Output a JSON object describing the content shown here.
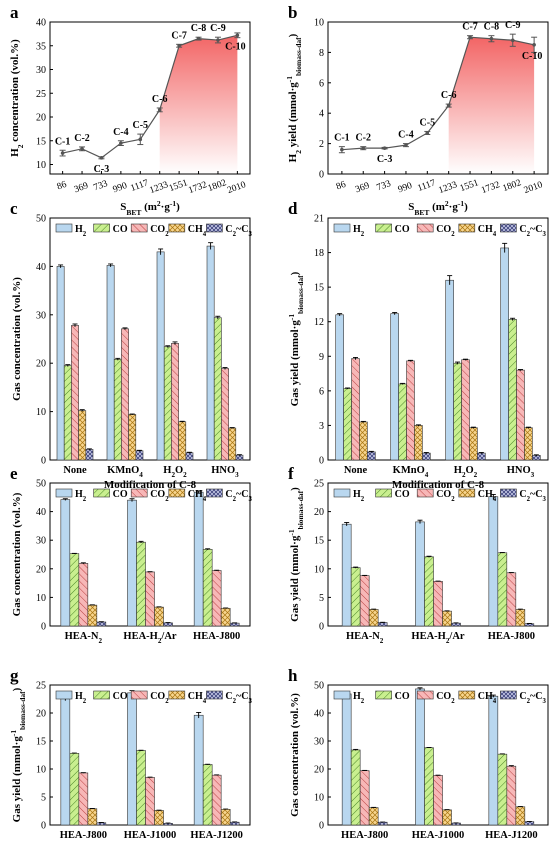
{
  "colors": {
    "H2": "#b9d7ef",
    "CO": "#c9ef8f",
    "CO2": "#f7b7b7",
    "CH4": "#f7d58e",
    "C2C3": "#c7cbe8",
    "line": "#555555",
    "area_top": "#f04a4a",
    "area_bottom": "#ffffff"
  },
  "chart_data": [
    {
      "panel": "a",
      "type": "line",
      "x_categories": [
        "86",
        "369",
        "733",
        "990",
        "1117",
        "1233",
        "1551",
        "1732",
        "1802",
        "2010"
      ],
      "point_labels": [
        "C-1",
        "C-2",
        "C-3",
        "C-4",
        "C-5",
        "C-6",
        "C-7",
        "C-8",
        "C-9",
        "C-10"
      ],
      "values": [
        12.4,
        13.3,
        11.4,
        14.5,
        15.3,
        21.5,
        35.0,
        36.5,
        36.2,
        37.2
      ],
      "errors": [
        0.6,
        0.4,
        0.2,
        0.5,
        1.1,
        0.4,
        0.3,
        0.3,
        0.6,
        0.5
      ],
      "xlabel": "S",
      "xlabel_sub": "BET",
      "xlabel_rest": " (m",
      "xlabel_sup": "2",
      "xlabel_tail": "·g",
      "xlabel_sup2": "-1",
      "xlabel_end": ")",
      "ylabel": "H",
      "ylabel_sub": "2",
      "ylabel_rest": " concentration (vol.%)",
      "ylim": [
        8,
        40
      ],
      "yticks": [
        10,
        15,
        20,
        25,
        30,
        35,
        40
      ],
      "fill_area": true
    },
    {
      "panel": "b",
      "type": "line",
      "x_categories": [
        "86",
        "369",
        "733",
        "990",
        "1117",
        "1233",
        "1551",
        "1732",
        "1802",
        "2010"
      ],
      "point_labels": [
        "C-1",
        "C-2",
        "C-3",
        "C-4",
        "C-5",
        "C-6",
        "C-7",
        "C-8",
        "C-9",
        "C-10"
      ],
      "values": [
        1.6,
        1.7,
        1.7,
        1.9,
        2.7,
        4.5,
        9.0,
        8.9,
        8.8,
        8.5
      ],
      "errors": [
        0.2,
        0.1,
        0.05,
        0.1,
        0.1,
        0.1,
        0.1,
        0.2,
        0.4,
        0.5
      ],
      "xlabel": "S",
      "xlabel_sub": "BET",
      "xlabel_rest": " (m",
      "xlabel_sup": "2",
      "xlabel_tail": "·g",
      "xlabel_sup2": "-1",
      "xlabel_end": ")",
      "ylabel": "H",
      "ylabel_sub": "2",
      "ylabel_rest": " yield (mmol·g",
      "ylabel_sup": "-1",
      "ylabel_sub2": "biomass-daf",
      "ylabel_end": ")",
      "ylim": [
        0,
        10
      ],
      "yticks": [
        0,
        2,
        4,
        6,
        8,
        10
      ],
      "fill_area": true
    },
    {
      "panel": "c",
      "type": "bar",
      "categories": [
        "None",
        "KMnO",
        "H",
        "HNO"
      ],
      "category_subs": [
        "",
        "4",
        "2",
        "3"
      ],
      "category_tails": [
        "",
        "",
        "O",
        ""
      ],
      "category_subs2": [
        "",
        "",
        "2",
        ""
      ],
      "series": [
        {
          "name": "H",
          "sub": "2",
          "key": "H2",
          "values": [
            40.0,
            40.2,
            43.0,
            44.2
          ],
          "errors": [
            0.3,
            0.3,
            0.6,
            0.7
          ]
        },
        {
          "name": "CO",
          "sub": "",
          "key": "CO",
          "values": [
            19.5,
            20.8,
            23.4,
            29.4
          ],
          "errors": [
            0.2,
            0.2,
            0.2,
            0.3
          ]
        },
        {
          "name": "CO",
          "sub": "2",
          "key": "CO2",
          "values": [
            27.8,
            27.1,
            24.1,
            18.9
          ],
          "errors": [
            0.3,
            0.2,
            0.3,
            0.2
          ]
        },
        {
          "name": "CH",
          "sub": "4",
          "key": "CH4",
          "values": [
            10.2,
            9.4,
            7.9,
            6.6
          ],
          "errors": [
            0.2,
            0.1,
            0.1,
            0.1
          ]
        },
        {
          "name": "C",
          "sub": "2",
          "name2": "~C",
          "sub2": "3",
          "key": "C2C3",
          "values": [
            2.2,
            1.9,
            1.5,
            1.0
          ],
          "errors": [
            0.1,
            0.1,
            0.1,
            0.1
          ]
        }
      ],
      "xlabel": "Modification of C-8",
      "ylabel": "Gas concentration (vol.%)",
      "ylim": [
        0,
        50
      ],
      "yticks": [
        0,
        10,
        20,
        30,
        40,
        50
      ]
    },
    {
      "panel": "d",
      "type": "bar",
      "categories": [
        "None",
        "KMnO",
        "H",
        "HNO"
      ],
      "category_subs": [
        "",
        "4",
        "2",
        "3"
      ],
      "category_tails": [
        "",
        "",
        "O",
        ""
      ],
      "category_subs2": [
        "",
        "",
        "2",
        ""
      ],
      "series": [
        {
          "name": "H",
          "sub": "2",
          "key": "H2",
          "values": [
            12.6,
            12.7,
            15.6,
            18.4
          ],
          "errors": [
            0.1,
            0.1,
            0.4,
            0.4
          ]
        },
        {
          "name": "CO",
          "sub": "",
          "key": "CO",
          "values": [
            6.2,
            6.6,
            8.4,
            12.2
          ],
          "errors": [
            0.05,
            0.05,
            0.1,
            0.1
          ]
        },
        {
          "name": "CO",
          "sub": "2",
          "key": "CO2",
          "values": [
            8.8,
            8.6,
            8.7,
            7.8
          ],
          "errors": [
            0.1,
            0.05,
            0.05,
            0.05
          ]
        },
        {
          "name": "CH",
          "sub": "4",
          "key": "CH4",
          "values": [
            3.3,
            3.0,
            2.8,
            2.8
          ],
          "errors": [
            0.05,
            0.05,
            0.05,
            0.05
          ]
        },
        {
          "name": "C",
          "sub": "2",
          "name2": "~C",
          "sub2": "3",
          "key": "C2C3",
          "values": [
            0.7,
            0.6,
            0.6,
            0.4
          ],
          "errors": [
            0.05,
            0.05,
            0.05,
            0.05
          ]
        }
      ],
      "xlabel": "Modification of C-8",
      "ylabel": "Gas yield (mmol·g",
      "ylabel_sup": "-1",
      "ylabel_sub": "biomass-daf",
      "ylabel_end": ")",
      "ylim": [
        0,
        21
      ],
      "yticks": [
        0,
        3,
        6,
        9,
        12,
        15,
        18,
        21
      ]
    },
    {
      "panel": "e",
      "type": "bar",
      "categories": [
        "HEA-N",
        "HEA-H",
        "HEA-J800"
      ],
      "category_subs": [
        "2",
        "2",
        ""
      ],
      "category_tails": [
        "",
        "/Ar",
        ""
      ],
      "category_subs2": [
        "",
        "",
        ""
      ],
      "series": [
        {
          "name": "H",
          "sub": "2",
          "key": "H2",
          "values": [
            44.2,
            44.0,
            46.8
          ],
          "errors": [
            0.3,
            0.5,
            0.4
          ]
        },
        {
          "name": "CO",
          "sub": "",
          "key": "CO",
          "values": [
            25.3,
            29.3,
            26.8
          ],
          "errors": [
            0.1,
            0.3,
            0.2
          ]
        },
        {
          "name": "CO",
          "sub": "2",
          "key": "CO2",
          "values": [
            21.9,
            18.9,
            19.4
          ],
          "errors": [
            0.2,
            0.1,
            0.1
          ]
        },
        {
          "name": "CH",
          "sub": "4",
          "key": "CH4",
          "values": [
            7.3,
            6.6,
            6.2
          ],
          "errors": [
            0.1,
            0.1,
            0.1
          ]
        },
        {
          "name": "C",
          "sub": "2",
          "name2": "~C",
          "sub2": "3",
          "key": "C2C3",
          "values": [
            1.4,
            1.1,
            1.0
          ],
          "errors": [
            0.1,
            0.1,
            0.1
          ]
        }
      ],
      "xlabel": "",
      "ylabel": "Gas concentration (vol.%)",
      "ylim": [
        0,
        50
      ],
      "yticks": [
        0,
        10,
        20,
        30,
        40,
        50
      ]
    },
    {
      "panel": "f",
      "type": "bar",
      "categories": [
        "HEA-N",
        "HEA-H",
        "HEA-J800"
      ],
      "category_subs": [
        "2",
        "2",
        ""
      ],
      "category_tails": [
        "",
        "/Ar",
        ""
      ],
      "category_subs2": [
        "",
        "",
        ""
      ],
      "series": [
        {
          "name": "H",
          "sub": "2",
          "key": "H2",
          "values": [
            17.8,
            18.2,
            22.6
          ],
          "errors": [
            0.3,
            0.3,
            0.4
          ]
        },
        {
          "name": "CO",
          "sub": "",
          "key": "CO",
          "values": [
            10.2,
            12.1,
            12.8
          ],
          "errors": [
            0.1,
            0.1,
            0.05
          ]
        },
        {
          "name": "CO",
          "sub": "2",
          "key": "CO2",
          "values": [
            8.8,
            7.8,
            9.3
          ],
          "errors": [
            0.05,
            0.05,
            0.05
          ]
        },
        {
          "name": "CH",
          "sub": "4",
          "key": "CH4",
          "values": [
            2.9,
            2.6,
            2.9
          ],
          "errors": [
            0.05,
            0.05,
            0.05
          ]
        },
        {
          "name": "C",
          "sub": "2",
          "name2": "~C",
          "sub2": "3",
          "key": "C2C3",
          "values": [
            0.6,
            0.5,
            0.4
          ],
          "errors": [
            0.05,
            0.05,
            0.05
          ]
        }
      ],
      "xlabel": "",
      "ylabel": "Gas yield (mmol·g",
      "ylabel_sup": "-1",
      "ylabel_sub": "biomass-daf",
      "ylabel_end": ")",
      "ylim": [
        0,
        25
      ],
      "yticks": [
        0,
        5,
        10,
        15,
        20,
        25
      ]
    },
    {
      "panel": "g",
      "type": "bar",
      "categories": [
        "HEA-J800",
        "HEA-J1000",
        "HEA-J1200"
      ],
      "category_subs": [
        "",
        "",
        ""
      ],
      "category_tails": [
        "",
        "",
        ""
      ],
      "category_subs2": [
        "",
        "",
        ""
      ],
      "series": [
        {
          "name": "H",
          "sub": "2",
          "key": "H2",
          "values": [
            22.6,
            23.6,
            19.6
          ],
          "errors": [
            0.4,
            0.4,
            0.5
          ]
        },
        {
          "name": "CO",
          "sub": "",
          "key": "CO",
          "values": [
            12.8,
            13.3,
            10.8
          ],
          "errors": [
            0.05,
            0.05,
            0.05
          ]
        },
        {
          "name": "CO",
          "sub": "2",
          "key": "CO2",
          "values": [
            9.3,
            8.5,
            8.9
          ],
          "errors": [
            0.05,
            0.05,
            0.05
          ]
        },
        {
          "name": "CH",
          "sub": "4",
          "key": "CH4",
          "values": [
            2.9,
            2.6,
            2.8
          ],
          "errors": [
            0.05,
            0.05,
            0.05
          ]
        },
        {
          "name": "C",
          "sub": "2",
          "name2": "~C",
          "sub2": "3",
          "key": "C2C3",
          "values": [
            0.4,
            0.3,
            0.5
          ],
          "errors": [
            0.05,
            0.05,
            0.05
          ]
        }
      ],
      "xlabel": "",
      "ylabel": "Gas yield (mmol·g",
      "ylabel_sup": "-1",
      "ylabel_sub": "biomass-daf",
      "ylabel_end": ")",
      "ylim": [
        0,
        25
      ],
      "yticks": [
        0,
        5,
        10,
        15,
        20,
        25
      ]
    },
    {
      "panel": "h",
      "type": "bar",
      "categories": [
        "HEA-J800",
        "HEA-J1000",
        "HEA-J1200"
      ],
      "category_subs": [
        "",
        "",
        ""
      ],
      "category_tails": [
        "",
        "",
        ""
      ],
      "category_subs2": [
        "",
        "",
        ""
      ],
      "series": [
        {
          "name": "H",
          "sub": "2",
          "key": "H2",
          "values": [
            46.8,
            48.6,
            46.0
          ],
          "errors": [
            0.4,
            0.4,
            0.4
          ]
        },
        {
          "name": "CO",
          "sub": "",
          "key": "CO",
          "values": [
            26.8,
            27.6,
            25.3
          ],
          "errors": [
            0.2,
            0.1,
            0.1
          ]
        },
        {
          "name": "CO",
          "sub": "2",
          "key": "CO2",
          "values": [
            19.4,
            17.7,
            21.0
          ],
          "errors": [
            0.1,
            0.1,
            0.2
          ]
        },
        {
          "name": "CH",
          "sub": "4",
          "key": "CH4",
          "values": [
            6.2,
            5.4,
            6.5
          ],
          "errors": [
            0.1,
            0.1,
            0.1
          ]
        },
        {
          "name": "C",
          "sub": "2",
          "name2": "~C",
          "sub2": "3",
          "key": "C2C3",
          "values": [
            1.0,
            0.7,
            1.2
          ],
          "errors": [
            0.05,
            0.05,
            0.05
          ]
        }
      ],
      "xlabel": "",
      "ylabel": "Gas concentration (vol.%)",
      "ylim": [
        0,
        50
      ],
      "yticks": [
        0,
        10,
        20,
        30,
        40,
        50
      ]
    }
  ]
}
